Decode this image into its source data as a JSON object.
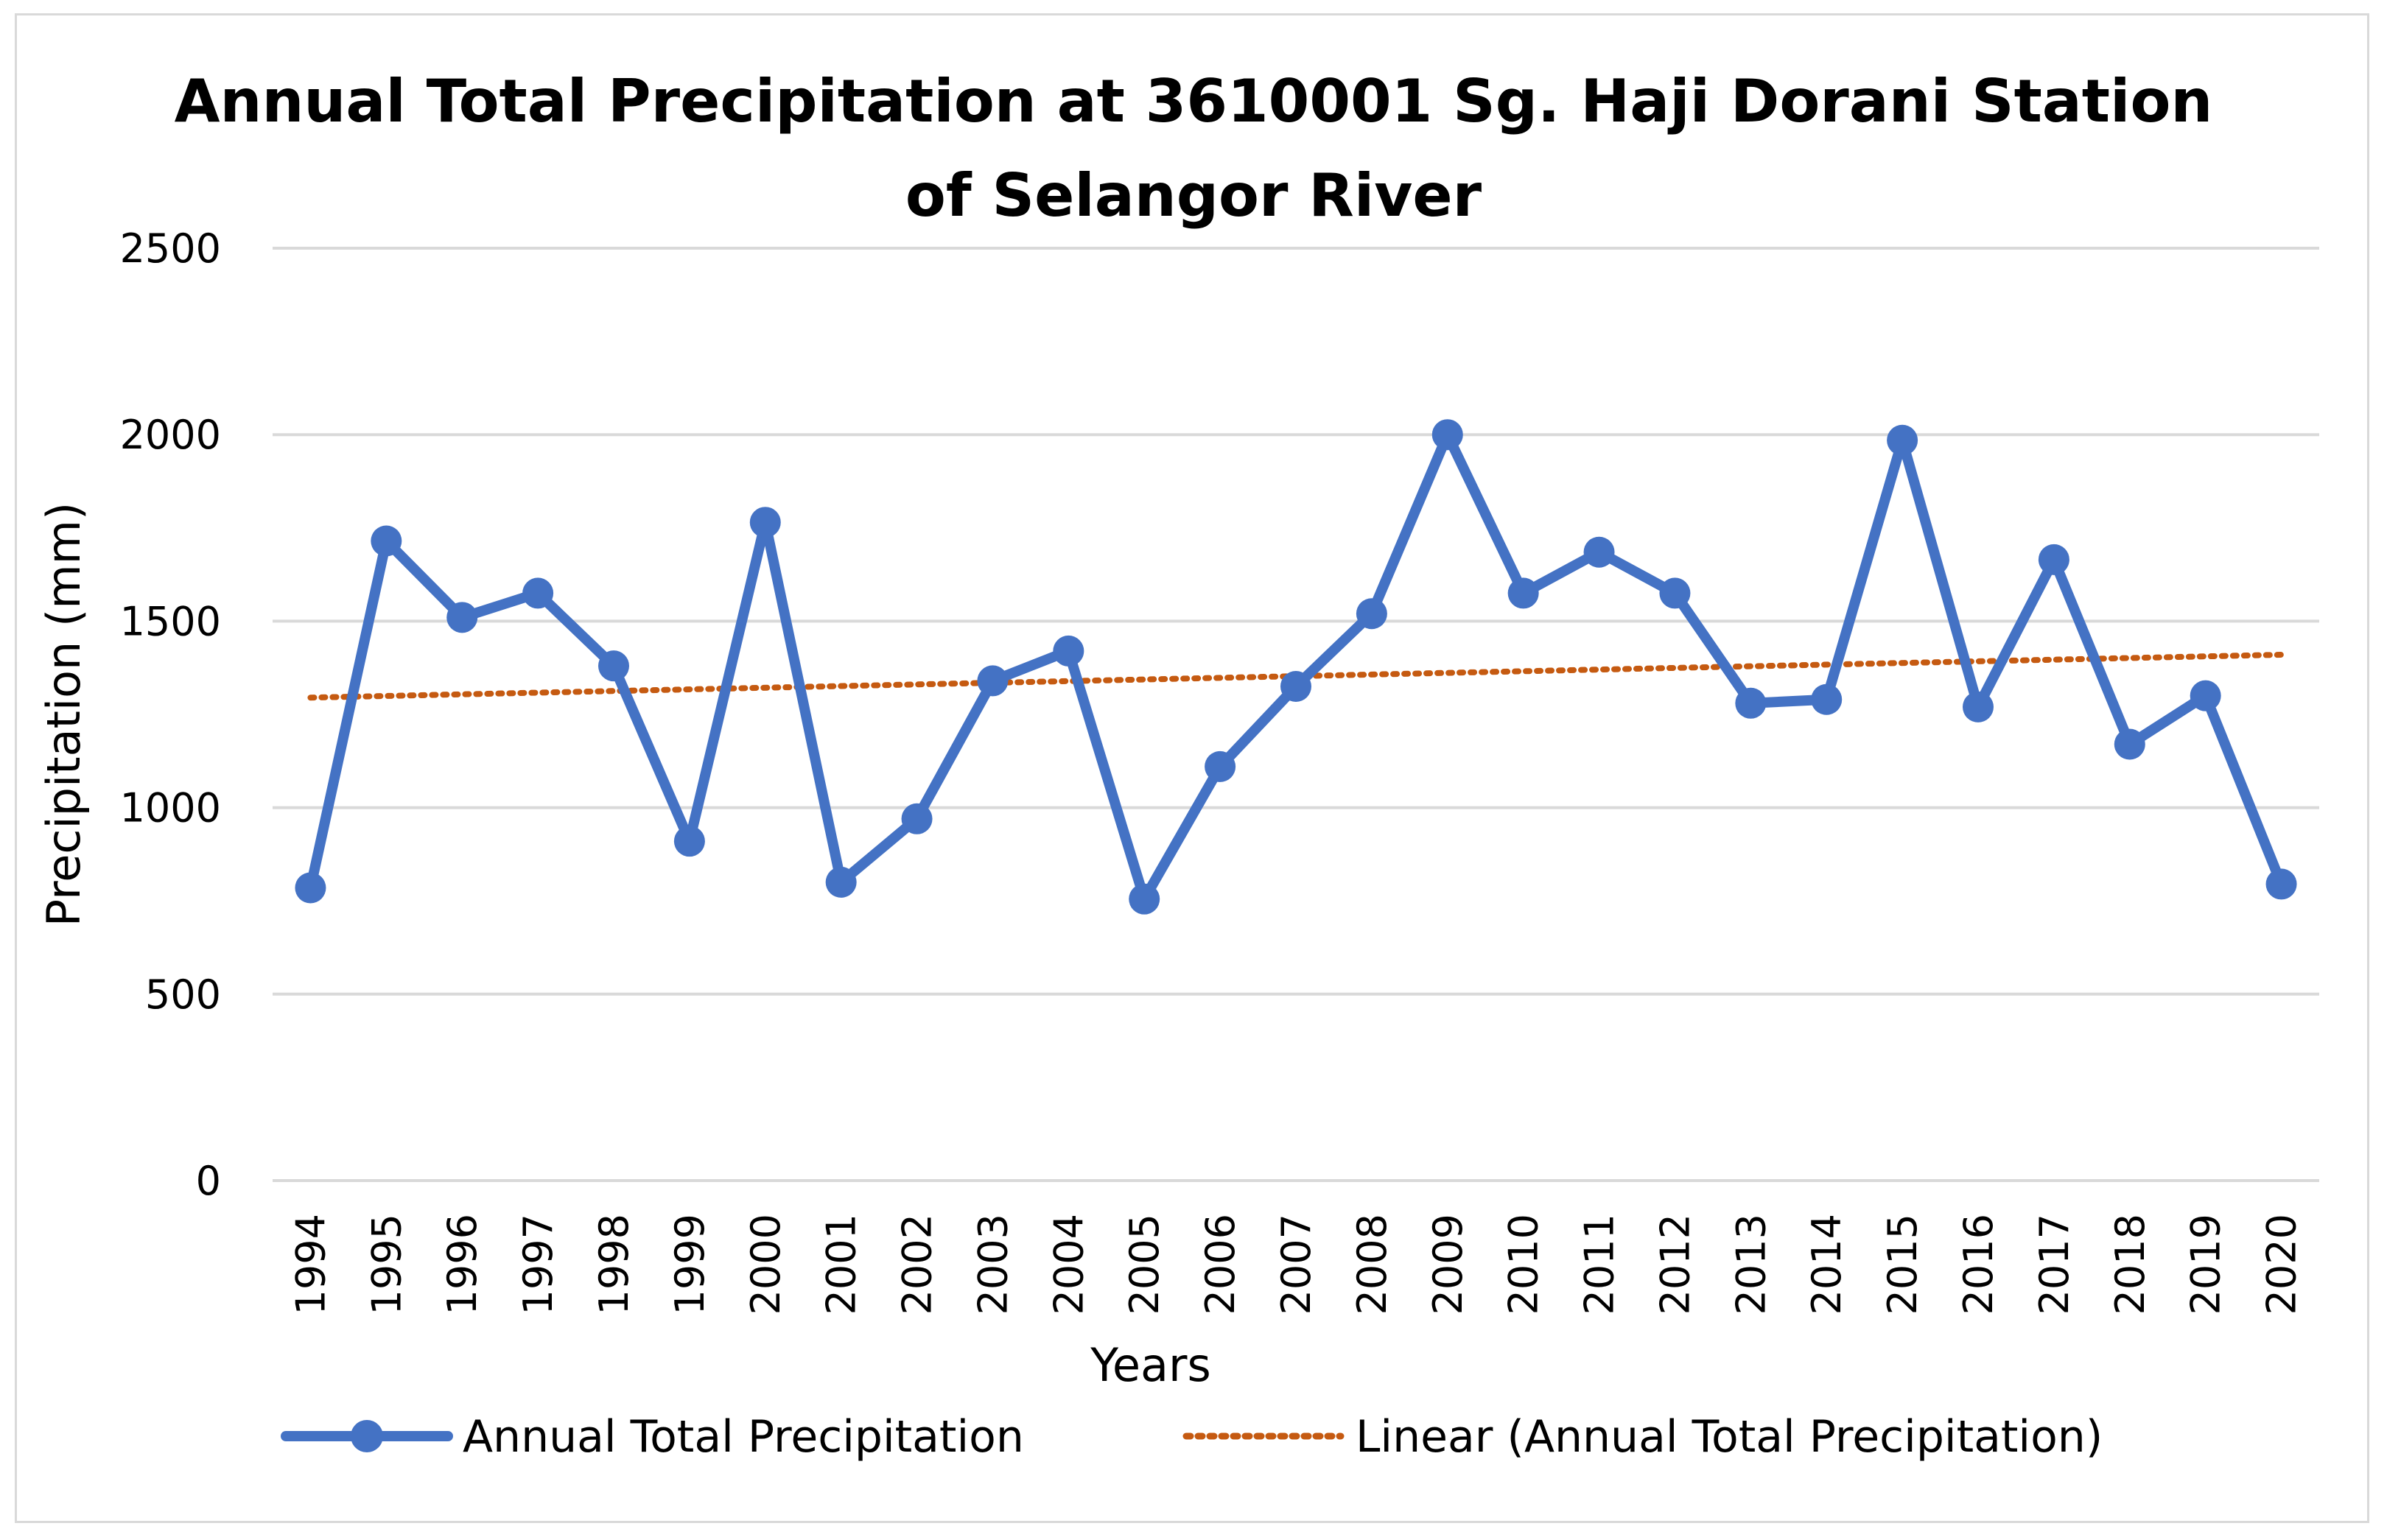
{
  "chart_data": {
    "type": "line",
    "title_lines": [
      "Annual Total Precipitation at 3610001 Sg. Haji Dorani Station",
      "of Selangor River"
    ],
    "xlabel": "Years",
    "ylabel": "Precipitation (mm)",
    "ylim": [
      0,
      2500
    ],
    "yticks": [
      "0",
      "500",
      "1000",
      "1500",
      "2000",
      "2500"
    ],
    "grid": true,
    "legend_position": "bottom",
    "categories": [
      "1994",
      "1995",
      "1996",
      "1997",
      "1998",
      "1999",
      "2000",
      "2001",
      "2002",
      "2003",
      "2004",
      "2005",
      "2006",
      "2007",
      "2008",
      "2009",
      "2010",
      "2011",
      "2012",
      "2013",
      "2014",
      "2015",
      "2016",
      "2017",
      "2018",
      "2019",
      "2020"
    ],
    "series": [
      {
        "name": "Annual Total Precipitation",
        "color": "#4472c4",
        "values": [
          785,
          1715,
          1510,
          1575,
          1380,
          910,
          1765,
          800,
          970,
          1340,
          1420,
          755,
          1110,
          1325,
          1520,
          2000,
          1575,
          1685,
          1575,
          1280,
          1290,
          1985,
          1270,
          1665,
          1170,
          1300,
          795
        ]
      }
    ],
    "trendline": {
      "name": "Linear (Annual Total Precipitation)",
      "color": "#c55a11",
      "start": 1295,
      "end": 1410
    }
  }
}
